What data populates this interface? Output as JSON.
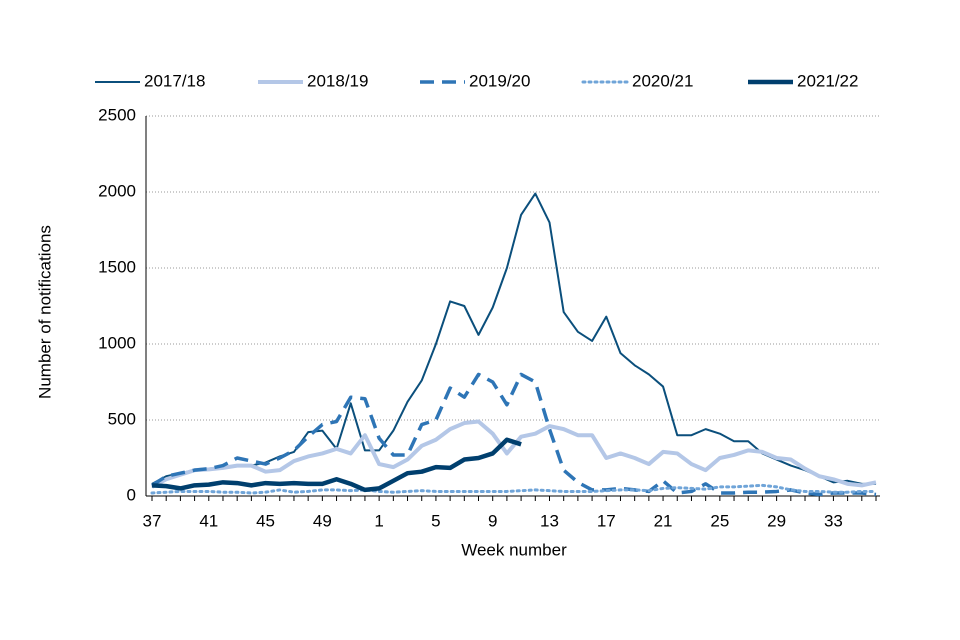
{
  "chart_data": {
    "type": "line",
    "x_label": "Week number",
    "y_label": "Number of notifications",
    "categories": [
      "37",
      null,
      null,
      null,
      "41",
      null,
      null,
      null,
      "45",
      null,
      null,
      null,
      "49",
      null,
      null,
      null,
      "1",
      null,
      null,
      null,
      "5",
      null,
      null,
      null,
      "9",
      null,
      null,
      null,
      "13",
      null,
      null,
      null,
      "17",
      null,
      null,
      null,
      "21",
      null,
      null,
      null,
      "25",
      null,
      null,
      null,
      "29",
      null,
      null,
      null,
      "33",
      null,
      null,
      null
    ],
    "ylim": [
      0,
      2500
    ],
    "yticks": [
      0,
      500,
      1000,
      1500,
      2000,
      2500
    ],
    "grid": true,
    "legend": "top",
    "series": [
      {
        "name": "2017/18",
        "color": "#0b4f7c",
        "line_style": "solid",
        "line_width": 2,
        "values": [
          80,
          130,
          150,
          170,
          180,
          190,
          200,
          200,
          220,
          260,
          290,
          420,
          430,
          310,
          610,
          300,
          300,
          430,
          620,
          760,
          1000,
          1280,
          1250,
          1060,
          1240,
          1500,
          1850,
          1990,
          1800,
          1210,
          1080,
          1020,
          1180,
          940,
          860,
          800,
          720,
          400,
          400,
          440,
          410,
          360,
          360,
          280,
          240,
          200,
          170,
          130,
          90,
          100,
          80,
          80
        ]
      },
      {
        "name": "2018/19",
        "color": "#b4c7e7",
        "line_style": "solid",
        "line_width": 4,
        "values": [
          60,
          110,
          140,
          170,
          175,
          185,
          200,
          200,
          160,
          170,
          230,
          260,
          280,
          310,
          280,
          400,
          210,
          190,
          240,
          330,
          370,
          440,
          480,
          490,
          410,
          280,
          390,
          410,
          460,
          440,
          400,
          400,
          250,
          280,
          250,
          210,
          290,
          280,
          210,
          170,
          250,
          270,
          300,
          290,
          250,
          240,
          180,
          130,
          110,
          80,
          70,
          90
        ]
      },
      {
        "name": "2019/20",
        "color": "#2e75b6",
        "line_style": "dashed",
        "line_width": 3.5,
        "values": [
          70,
          130,
          150,
          170,
          180,
          200,
          250,
          230,
          210,
          250,
          300,
          390,
          470,
          490,
          650,
          640,
          380,
          270,
          270,
          470,
          500,
          710,
          650,
          800,
          750,
          600,
          800,
          750,
          440,
          170,
          90,
          40,
          40,
          50,
          40,
          30,
          100,
          20,
          30,
          80,
          20,
          20,
          25,
          25,
          30,
          40,
          20,
          10,
          20,
          20,
          20,
          10
        ]
      },
      {
        "name": "2020/21",
        "color": "#6fa4d8",
        "line_style": "dotted",
        "line_width": 3,
        "values": [
          20,
          25,
          30,
          30,
          30,
          25,
          25,
          20,
          25,
          40,
          25,
          30,
          40,
          40,
          35,
          40,
          30,
          25,
          30,
          35,
          30,
          30,
          30,
          30,
          30,
          30,
          35,
          40,
          35,
          30,
          30,
          30,
          35,
          40,
          40,
          35,
          50,
          55,
          50,
          45,
          60,
          60,
          65,
          70,
          60,
          40,
          30,
          30,
          25,
          25,
          30,
          30
        ]
      },
      {
        "name": "2021/22",
        "color": "#003f6e",
        "line_style": "solid",
        "line_width": 4.5,
        "values": [
          70,
          65,
          50,
          70,
          75,
          90,
          85,
          70,
          85,
          80,
          85,
          80,
          80,
          110,
          80,
          40,
          50,
          100,
          150,
          160,
          190,
          185,
          240,
          250,
          280,
          370,
          340,
          null,
          null,
          null,
          null,
          null,
          null,
          null,
          null,
          null,
          null,
          null,
          null,
          null,
          null,
          null,
          null,
          null,
          null,
          null,
          null,
          null,
          null,
          null,
          null,
          null
        ]
      }
    ]
  }
}
